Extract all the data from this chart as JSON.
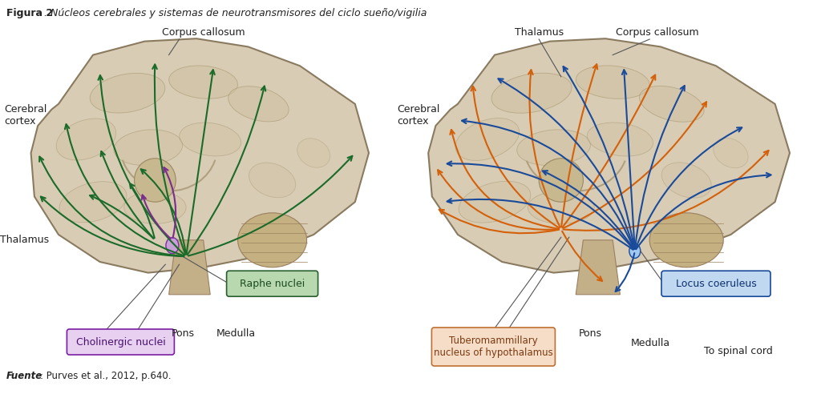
{
  "title_bold": "Figura 2",
  "title_italic": ". Núcleos cerebrales y sistemas de neurotransmisores del ciclo sueño/vigilia",
  "footer_bold": "Fuente",
  "footer_rest": ": Purves et al., 2012, p.640.",
  "background_color": "#ffffff",
  "fig_width": 10.24,
  "fig_height": 4.92,
  "left_brain_color": "#d8ccb4",
  "left_brain_edge": "#8a7a60",
  "right_brain_color": "#d8ccb4",
  "right_brain_edge": "#8a7a60",
  "green": "#1a6b2a",
  "purple": "#7b2d8b",
  "orange": "#d4600a",
  "blue": "#1a4a9a",
  "raphe_box_fill": "#b8d8b0",
  "raphe_box_edge": "#2a6030",
  "chol_box_fill": "#e8d0f0",
  "chol_box_edge": "#7b1fa2",
  "tmh_box_fill": "#f5ddc8",
  "tmh_box_edge": "#c07030",
  "lc_box_fill": "#c0d8f0",
  "lc_box_edge": "#1a4a9a"
}
